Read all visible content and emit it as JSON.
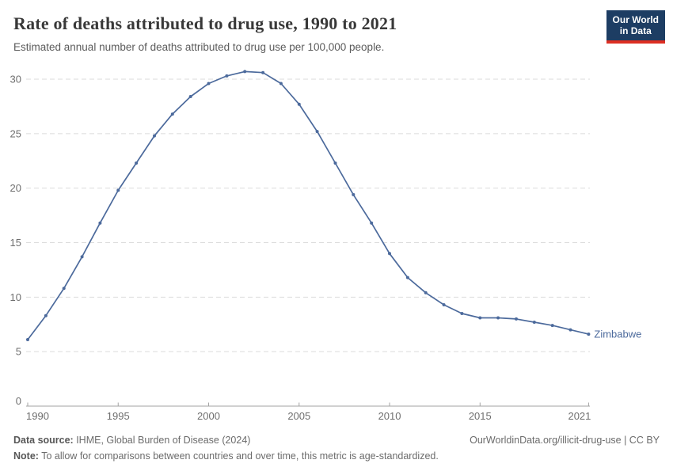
{
  "header": {
    "title": "Rate of deaths attributed to drug use, 1990 to 2021",
    "subtitle": "Estimated annual number of deaths attributed to drug use per 100,000 people.",
    "logo": {
      "line1": "Our World",
      "line2": "in Data"
    }
  },
  "chart_data": {
    "type": "line",
    "title": "Rate of deaths attributed to drug use, 1990 to 2021",
    "xlabel": "",
    "ylabel": "Estimated annual deaths attributed to drug use per 100,000 people",
    "x": [
      1990,
      1991,
      1992,
      1993,
      1994,
      1995,
      1996,
      1997,
      1998,
      1999,
      2000,
      2001,
      2002,
      2003,
      2004,
      2005,
      2006,
      2007,
      2008,
      2009,
      2010,
      2011,
      2012,
      2013,
      2014,
      2015,
      2016,
      2017,
      2018,
      2019,
      2020,
      2021
    ],
    "series": [
      {
        "name": "Zimbabwe",
        "color": "#4c6a9c",
        "values": [
          6.1,
          8.3,
          10.8,
          13.7,
          16.8,
          19.8,
          22.3,
          24.8,
          26.8,
          28.4,
          29.6,
          30.3,
          30.7,
          30.6,
          29.6,
          27.7,
          25.2,
          22.3,
          19.4,
          16.8,
          14.0,
          11.8,
          10.4,
          9.3,
          8.5,
          8.1,
          8.1,
          8.0,
          7.7,
          7.4,
          7.0,
          6.6
        ]
      }
    ],
    "ylim": [
      0,
      30
    ],
    "yticks": [
      0,
      5,
      10,
      15,
      20,
      25,
      30
    ],
    "xticks": [
      1990,
      1995,
      2000,
      2005,
      2010,
      2015,
      2021
    ],
    "grid": "horizontal-dashed",
    "legend_position": "end-of-line-label",
    "end_label": "Zimbabwe"
  },
  "colors": {
    "line": "#4c6a9c",
    "grid": "#dbdbdb",
    "axis": "#a3a3a3",
    "tick_label": "#6e6e6e",
    "logo_bg": "#1d3d63",
    "logo_accent": "#dc2e22"
  },
  "footer": {
    "datasource_label": "Data source:",
    "datasource_text": " IHME, Global Burden of Disease (2024)",
    "link": "OurWorldinData.org/illicit-drug-use | CC BY",
    "note_label": "Note:",
    "note_text": " To allow for comparisons between countries and over time, this metric is age-standardized."
  }
}
